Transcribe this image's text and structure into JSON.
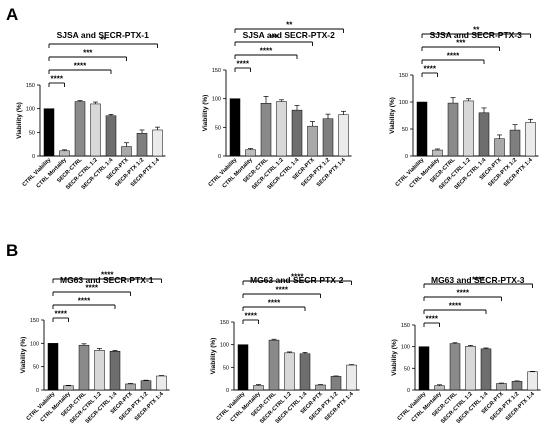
{
  "panels": [
    {
      "letter": "A"
    },
    {
      "letter": "B"
    }
  ],
  "ylabel": "Viability (%)",
  "categories": [
    "CTRL Viability",
    "CTRL Mortality",
    "SECR-CTRL",
    "SECR-CTRL 1:2",
    "SECR-CTRL 1:4",
    "SECR-PTX",
    "SECR-PTX 1:2",
    "SECR-PTX 1:4"
  ],
  "bar_colors": [
    "#000000",
    "#bdbdbd",
    "#8a8a8a",
    "#d8d8d8",
    "#6e6e6e",
    "#a9a9a9",
    "#7f7f7f",
    "#ebebeb"
  ],
  "chart_data": [
    {
      "type": "bar",
      "title": "SJSA and SECR-PTX-1",
      "ylabel": "Viability (%)",
      "ylim": [
        0,
        150
      ],
      "yticks": [
        "0",
        "50",
        "100",
        "150"
      ],
      "categories": [
        "CTRL Viability",
        "CTRL Mortality",
        "SECR-CTRL",
        "SECR-CTRL 1:2",
        "SECR-CTRL 1:4",
        "SECR-PTX",
        "SECR-PTX 1:2",
        "SECR-PTX 1:4"
      ],
      "values": [
        100,
        11,
        115,
        110,
        85,
        20,
        48,
        55
      ],
      "errors": [
        0,
        2,
        2,
        4,
        3,
        8,
        7,
        6
      ],
      "significance": [
        {
          "from": "CTRL Viability",
          "to": "CTRL Mortality",
          "label": "****"
        },
        {
          "from": "CTRL Viability",
          "to": "SECR-CTRL 1:4",
          "label": "****"
        },
        {
          "from": "CTRL Viability",
          "to": "SECR-PTX",
          "label": "***"
        },
        {
          "from": "CTRL Viability",
          "to": "SECR-PTX 1:4",
          "label": "**"
        }
      ]
    },
    {
      "type": "bar",
      "title": "SJSA and SECR-PTX-2",
      "ylabel": "Viability (%)",
      "ylim": [
        0,
        150
      ],
      "yticks": [
        "0",
        "50",
        "100",
        "150"
      ],
      "categories": [
        "CTRL Viability",
        "CTRL Mortality",
        "SECR-CTRL",
        "SECR-CTRL 1:2",
        "SECR-CTRL 1:4",
        "SECR-PTX",
        "SECR-PTX 1:2",
        "SECR-PTX 1:4"
      ],
      "values": [
        100,
        11,
        92,
        95,
        80,
        52,
        65,
        72
      ],
      "errors": [
        0,
        2,
        12,
        3,
        8,
        8,
        8,
        6
      ],
      "significance": [
        {
          "from": "CTRL Viability",
          "to": "CTRL Mortality",
          "label": "****"
        },
        {
          "from": "CTRL Viability",
          "to": "SECR-CTRL 1:4",
          "label": "****"
        },
        {
          "from": "CTRL Viability",
          "to": "SECR-PTX",
          "label": "***"
        },
        {
          "from": "CTRL Viability",
          "to": "SECR-PTX 1:4",
          "label": "**"
        }
      ]
    },
    {
      "type": "bar",
      "title": "SJSA and SECR-PTX-3",
      "ylabel": "Viability (%)",
      "ylim": [
        0,
        150
      ],
      "yticks": [
        "0",
        "50",
        "100",
        "150"
      ],
      "categories": [
        "CTRL Viability",
        "CTRL Mortality",
        "SECR-CTRL",
        "SECR-CTRL 1:2",
        "SECR-CTRL 1:4",
        "SECR-PTX",
        "SECR-PTX 1:2",
        "SECR-PTX 1:4"
      ],
      "values": [
        100,
        11,
        98,
        102,
        80,
        32,
        48,
        62
      ],
      "errors": [
        0,
        2,
        10,
        4,
        9,
        7,
        10,
        6
      ],
      "significance": [
        {
          "from": "CTRL Viability",
          "to": "CTRL Mortality",
          "label": "****"
        },
        {
          "from": "CTRL Viability",
          "to": "SECR-CTRL 1:4",
          "label": "****"
        },
        {
          "from": "CTRL Viability",
          "to": "SECR-PTX",
          "label": "***"
        },
        {
          "from": "CTRL Viability",
          "to": "SECR-PTX 1:4",
          "label": "**"
        }
      ]
    },
    {
      "type": "bar",
      "title": "MG63 and SECR-PTX-1",
      "ylabel": "Viability (%)",
      "ylim": [
        0,
        150
      ],
      "yticks": [
        "0",
        "50",
        "100",
        "150"
      ],
      "categories": [
        "CTRL Viability",
        "CTRL Mortality",
        "SECR-CTRL",
        "SECR-CTRL 1:2",
        "SECR-CTRL 1:4",
        "SECR-PTX",
        "SECR-PTX 1:2",
        "SECR-PTX 1:4"
      ],
      "values": [
        100,
        9,
        96,
        85,
        83,
        13,
        20,
        30
      ],
      "errors": [
        0,
        1,
        3,
        4,
        2,
        1,
        1,
        1
      ],
      "significance": [
        {
          "from": "CTRL Viability",
          "to": "CTRL Mortality",
          "label": "****"
        },
        {
          "from": "CTRL Viability",
          "to": "SECR-CTRL 1:4",
          "label": "****"
        },
        {
          "from": "CTRL Viability",
          "to": "SECR-PTX",
          "label": "****"
        },
        {
          "from": "CTRL Viability",
          "to": "SECR-PTX 1:4",
          "label": "****"
        }
      ]
    },
    {
      "type": "bar",
      "title": "MG63 and SECR-PTX-2",
      "ylabel": "Viability (%)",
      "ylim": [
        0,
        150
      ],
      "yticks": [
        "0",
        "50",
        "100",
        "150"
      ],
      "categories": [
        "CTRL Viability",
        "CTRL Mortality",
        "SECR-CTRL",
        "SECR-CTRL 1:2",
        "SECR-CTRL 1:4",
        "SECR-PTX",
        "SECR-PTX 1:2",
        "SECR-PTX 1:4"
      ],
      "values": [
        100,
        10,
        110,
        82,
        80,
        11,
        30,
        55
      ],
      "errors": [
        0,
        2,
        2,
        2,
        3,
        1,
        1,
        1
      ],
      "significance": [
        {
          "from": "CTRL Viability",
          "to": "CTRL Mortality",
          "label": "****"
        },
        {
          "from": "CTRL Viability",
          "to": "SECR-CTRL 1:4",
          "label": "****"
        },
        {
          "from": "CTRL Viability",
          "to": "SECR-PTX",
          "label": "****"
        },
        {
          "from": "CTRL Viability",
          "to": "SECR-PTX 1:4",
          "label": "****"
        }
      ]
    },
    {
      "type": "bar",
      "title": "MG63 and SECR-PTX-3",
      "ylabel": "Viability (%)",
      "ylim": [
        0,
        150
      ],
      "yticks": [
        "0",
        "50",
        "100",
        "150"
      ],
      "categories": [
        "CTRL Viability",
        "CTRL Mortality",
        "SECR-CTRL",
        "SECR-CTRL 1:2",
        "SECR-CTRL 1:4",
        "SECR-PTX",
        "SECR-PTX 1:2",
        "SECR-PTX 1:4"
      ],
      "values": [
        100,
        10,
        107,
        101,
        95,
        15,
        20,
        42
      ],
      "errors": [
        0,
        2,
        2,
        2,
        2,
        1,
        1,
        1
      ],
      "significance": [
        {
          "from": "CTRL Viability",
          "to": "CTRL Mortality",
          "label": "****"
        },
        {
          "from": "CTRL Viability",
          "to": "SECR-CTRL 1:4",
          "label": "****"
        },
        {
          "from": "CTRL Viability",
          "to": "SECR-PTX",
          "label": "****"
        },
        {
          "from": "CTRL Viability",
          "to": "SECR-PTX 1:4",
          "label": "****"
        }
      ]
    }
  ]
}
